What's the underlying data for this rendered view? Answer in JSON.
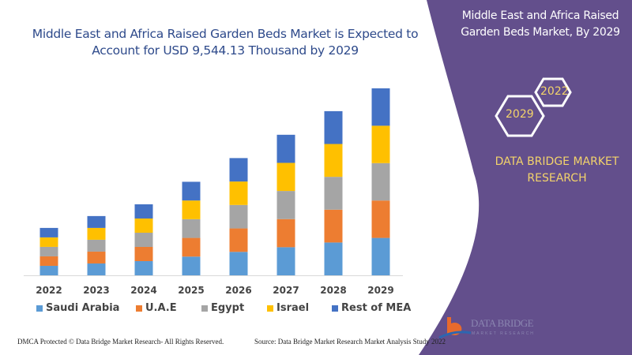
{
  "header": {
    "title": "Middle East and Africa Raised Garden Beds Market is Expected to Account for USD 9,544.13 Thousand by 2029"
  },
  "side_panel": {
    "title": "Middle East and Africa Raised Garden Beds Market, By 2029",
    "hex_labels": [
      "2022",
      "2029"
    ],
    "brand": "DATA BRIDGE MARKET RESEARCH",
    "logo_text": "DATA BRIDGE",
    "logo_sub": "MARKET RESEARCH",
    "panel_color": "#634F8C",
    "accent_color": "#F3D36B"
  },
  "footer": {
    "left": "DMCA Protected © Data Bridge Market Research- All Rights Reserved.",
    "right": "Source: Data Bridge Market Research Market Analysis Study 2022"
  },
  "chart_data": {
    "type": "bar",
    "stacked": true,
    "title": "Middle East and Africa Raised Garden Beds Market is Expected to Account for USD 9,544.13 Thousand by 2029",
    "categories": [
      "2022",
      "2023",
      "2024",
      "2025",
      "2026",
      "2027",
      "2028",
      "2029"
    ],
    "series": [
      {
        "name": "Saudi Arabia",
        "color": "#5B9BD5",
        "values": [
          484,
          605,
          725,
          955,
          1197,
          1435,
          1676,
          1909
        ]
      },
      {
        "name": "U.A.E",
        "color": "#ED7D31",
        "values": [
          484,
          605,
          725,
          955,
          1197,
          1435,
          1676,
          1909
        ]
      },
      {
        "name": "Egypt",
        "color": "#A5A5A5",
        "values": [
          484,
          605,
          725,
          955,
          1197,
          1435,
          1676,
          1909
        ]
      },
      {
        "name": "Israel",
        "color": "#FFC000",
        "values": [
          484,
          605,
          725,
          955,
          1197,
          1435,
          1676,
          1909
        ]
      },
      {
        "name": "Rest of MEA",
        "color": "#4472C4",
        "values": [
          484,
          605,
          725,
          955,
          1197,
          1435,
          1676,
          1909
        ]
      }
    ],
    "ylim": [
      0,
      9544.13
    ],
    "grid": false,
    "legend": "bottom"
  }
}
